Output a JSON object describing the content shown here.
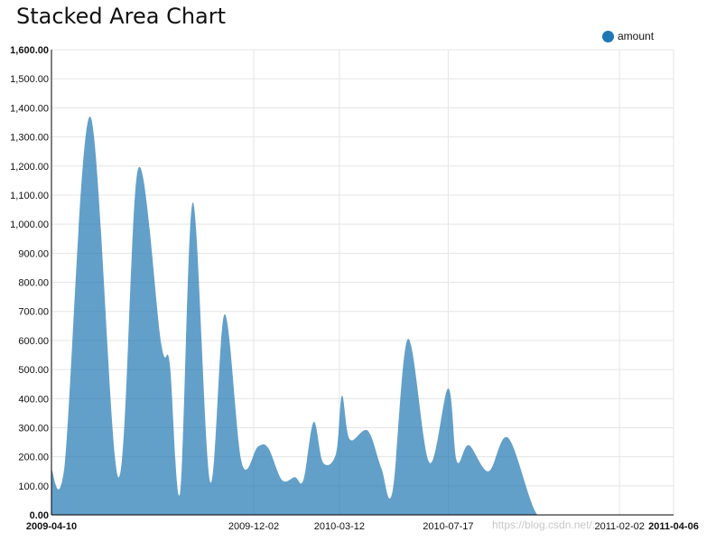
{
  "chart_data": {
    "type": "area",
    "title": "Stacked Area Chart",
    "legend": {
      "position": "top-right",
      "items": [
        "amount"
      ]
    },
    "series": [
      {
        "name": "amount",
        "color": "#1f77b4",
        "x": [
          "2009-04-10",
          "2009-04-25",
          "2009-05-25",
          "2009-06-27",
          "2009-07-20",
          "2009-08-16",
          "2009-08-26",
          "2009-09-07",
          "2009-09-22",
          "2009-10-12",
          "2009-10-29",
          "2009-11-18",
          "2009-12-07",
          "2009-12-19",
          "2010-01-04",
          "2010-01-19",
          "2010-01-29",
          "2010-02-10",
          "2010-02-21",
          "2010-03-08",
          "2010-03-15",
          "2010-03-24",
          "2010-04-14",
          "2010-04-30",
          "2010-05-13",
          "2010-05-31",
          "2010-06-25",
          "2010-07-17",
          "2010-07-27",
          "2010-08-10",
          "2010-09-02",
          "2010-09-25",
          "2010-10-29",
          "2010-11-29",
          "2010-12-23",
          "2011-01-10",
          "2011-01-28",
          "2011-02-07",
          "2011-02-21",
          "2011-02-28",
          "2011-03-10",
          "2011-03-24",
          "2011-04-01",
          "2011-04-06"
        ],
        "values": [
          155,
          160,
          1370,
          130,
          1190,
          590,
          520,
          75,
          1075,
          115,
          690,
          180,
          235,
          230,
          120,
          130,
          120,
          320,
          180,
          210,
          410,
          260,
          290,
          160,
          80,
          605,
          180,
          435,
          185,
          240,
          150,
          265,
          0,
          0,
          0,
          0,
          0,
          0,
          0,
          0,
          0,
          0,
          0,
          0
        ]
      }
    ],
    "x_ticks": [
      "2009-04-10",
      "2009-12-02",
      "2010-03-12",
      "2010-07-17",
      "2011-02-02",
      "2011-04-06"
    ],
    "y_ticks": [
      "0.00",
      "100.00",
      "200.00",
      "300.00",
      "400.00",
      "500.00",
      "600.00",
      "700.00",
      "800.00",
      "900.00",
      "1,000.00",
      "1,100.00",
      "1,200.00",
      "1,300.00",
      "1,400.00",
      "1,500.00",
      "1,600.00"
    ],
    "ylim": [
      0,
      1600
    ],
    "grid": true
  },
  "watermark": "https://blog.csdn.net/..."
}
